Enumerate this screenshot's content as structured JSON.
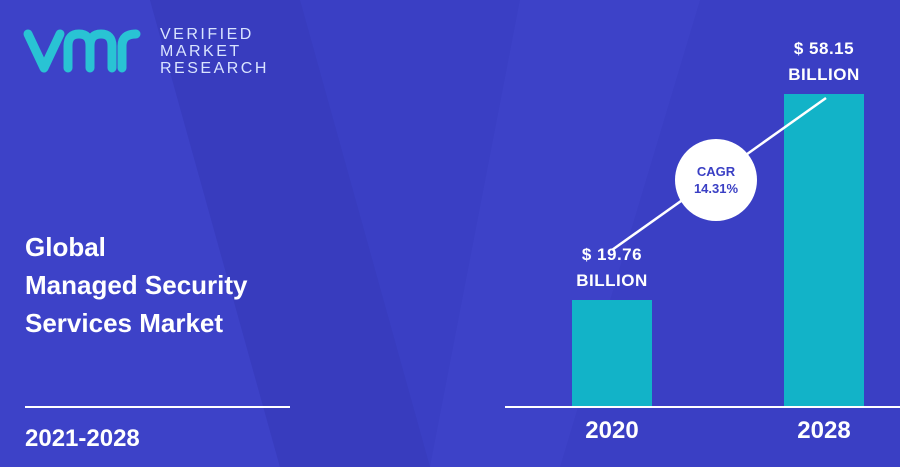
{
  "logo": {
    "line1": "VERIFIED",
    "line2": "MARKET",
    "line3": "RESEARCH"
  },
  "title": {
    "line1": "Global",
    "line2": "Managed Security",
    "line3": "Services Market"
  },
  "period": "2021-2028",
  "cagr": {
    "label": "CAGR",
    "value": "14.31%"
  },
  "colors": {
    "background": "#3a3fc4",
    "bar": "#12b3c8",
    "text": "#ffffff",
    "logo_accent": "#29c3d4"
  },
  "chart_data": {
    "type": "bar",
    "categories": [
      "2020",
      "2028"
    ],
    "values": [
      19.76,
      58.15
    ],
    "value_labels": [
      {
        "line1": "$ 19.76",
        "line2": "BILLION"
      },
      {
        "line1": "$ 58.15",
        "line2": "BILLION"
      }
    ],
    "title": "",
    "xlabel": "",
    "ylabel": "",
    "ylim": [
      0,
      58.15
    ],
    "grid": false,
    "legend": "none"
  }
}
